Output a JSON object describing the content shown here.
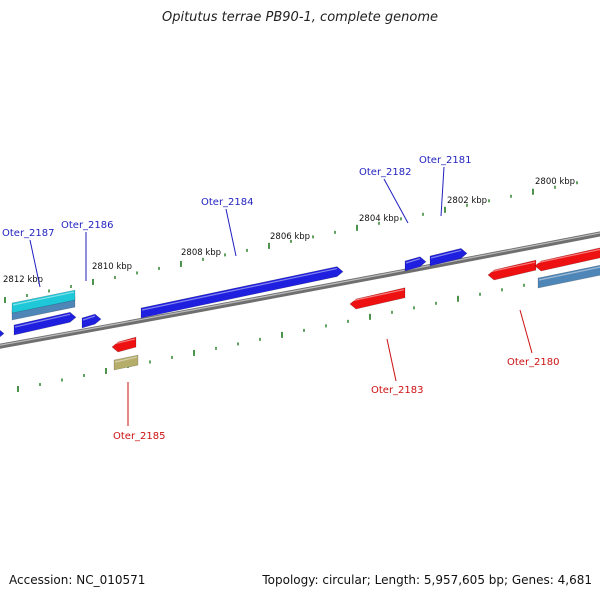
{
  "title": "Opitutus terrae PB90-1, complete genome",
  "footer": {
    "accession": "Accession: NC_010571",
    "summary": "Topology: circular; Length: 5,957,605 bp; Genes: 4,681"
  },
  "colors": {
    "forward_gene": "#1f1fe0",
    "reverse_gene": "#ee1111",
    "cds_forward": "#1ec8d8",
    "cds_steel": "#4f86b8",
    "cds_tan": "#b5ad6a",
    "backbone": "#7a7a7a",
    "tick": "#1f7a1f",
    "label_forward": "#1f1fbf",
    "label_reverse": "#cc1111"
  },
  "scale_labels": [
    "2812 kbp",
    "2810 kbp",
    "2808 kbp",
    "2806 kbp",
    "2804 kbp",
    "2802 kbp",
    "2800 kbp"
  ],
  "genes": [
    {
      "name": "Oter_2187",
      "strand": "forward"
    },
    {
      "name": "Oter_2186",
      "strand": "forward"
    },
    {
      "name": "Oter_2184",
      "strand": "forward"
    },
    {
      "name": "Oter_2182",
      "strand": "forward"
    },
    {
      "name": "Oter_2181",
      "strand": "forward"
    },
    {
      "name": "Oter_2185",
      "strand": "reverse"
    },
    {
      "name": "Oter_2183",
      "strand": "reverse"
    },
    {
      "name": "Oter_2180",
      "strand": "reverse"
    }
  ]
}
